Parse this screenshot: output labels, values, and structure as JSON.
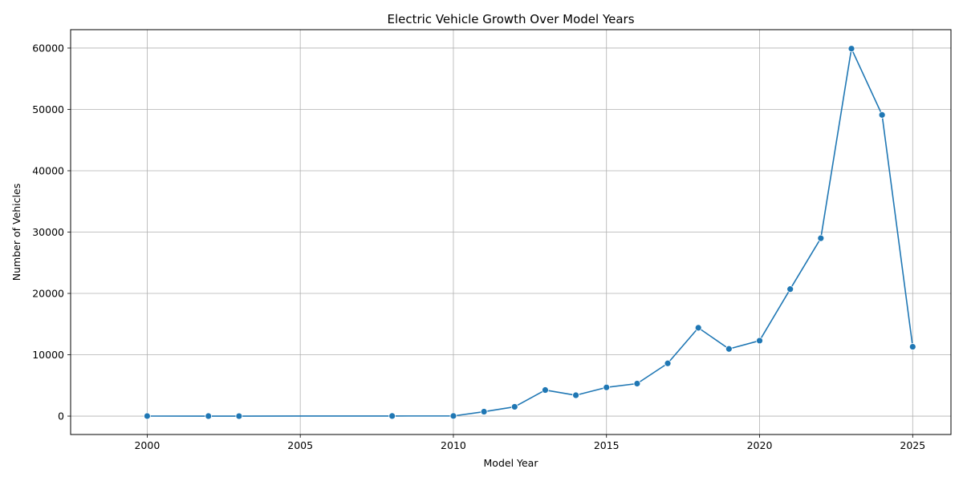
{
  "chart_data": {
    "type": "line",
    "title": "Electric Vehicle Growth Over Model Years",
    "xlabel": "Model Year",
    "ylabel": "Number of Vehicles",
    "xlim": [
      1997.5,
      2026.25
    ],
    "ylim": [
      -3000,
      63000
    ],
    "xticks": [
      2000,
      2005,
      2010,
      2015,
      2020,
      2025
    ],
    "yticks": [
      0,
      10000,
      20000,
      30000,
      40000,
      50000,
      60000
    ],
    "grid": true,
    "series_color": "#1f77b4",
    "series": [
      {
        "marker": "circle",
        "points": [
          {
            "x": 2000,
            "y": 7
          },
          {
            "x": 2002,
            "y": 2
          },
          {
            "x": 2003,
            "y": 1
          },
          {
            "x": 2008,
            "y": 20
          },
          {
            "x": 2010,
            "y": 23
          },
          {
            "x": 2011,
            "y": 720
          },
          {
            "x": 2012,
            "y": 1520
          },
          {
            "x": 2013,
            "y": 4250
          },
          {
            "x": 2014,
            "y": 3400
          },
          {
            "x": 2015,
            "y": 4680
          },
          {
            "x": 2016,
            "y": 5300
          },
          {
            "x": 2017,
            "y": 8600
          },
          {
            "x": 2018,
            "y": 14400
          },
          {
            "x": 2019,
            "y": 10950
          },
          {
            "x": 2020,
            "y": 12300
          },
          {
            "x": 2021,
            "y": 20700
          },
          {
            "x": 2022,
            "y": 29000
          },
          {
            "x": 2023,
            "y": 59900
          },
          {
            "x": 2024,
            "y": 49100
          },
          {
            "x": 2025,
            "y": 11300
          }
        ]
      }
    ]
  }
}
